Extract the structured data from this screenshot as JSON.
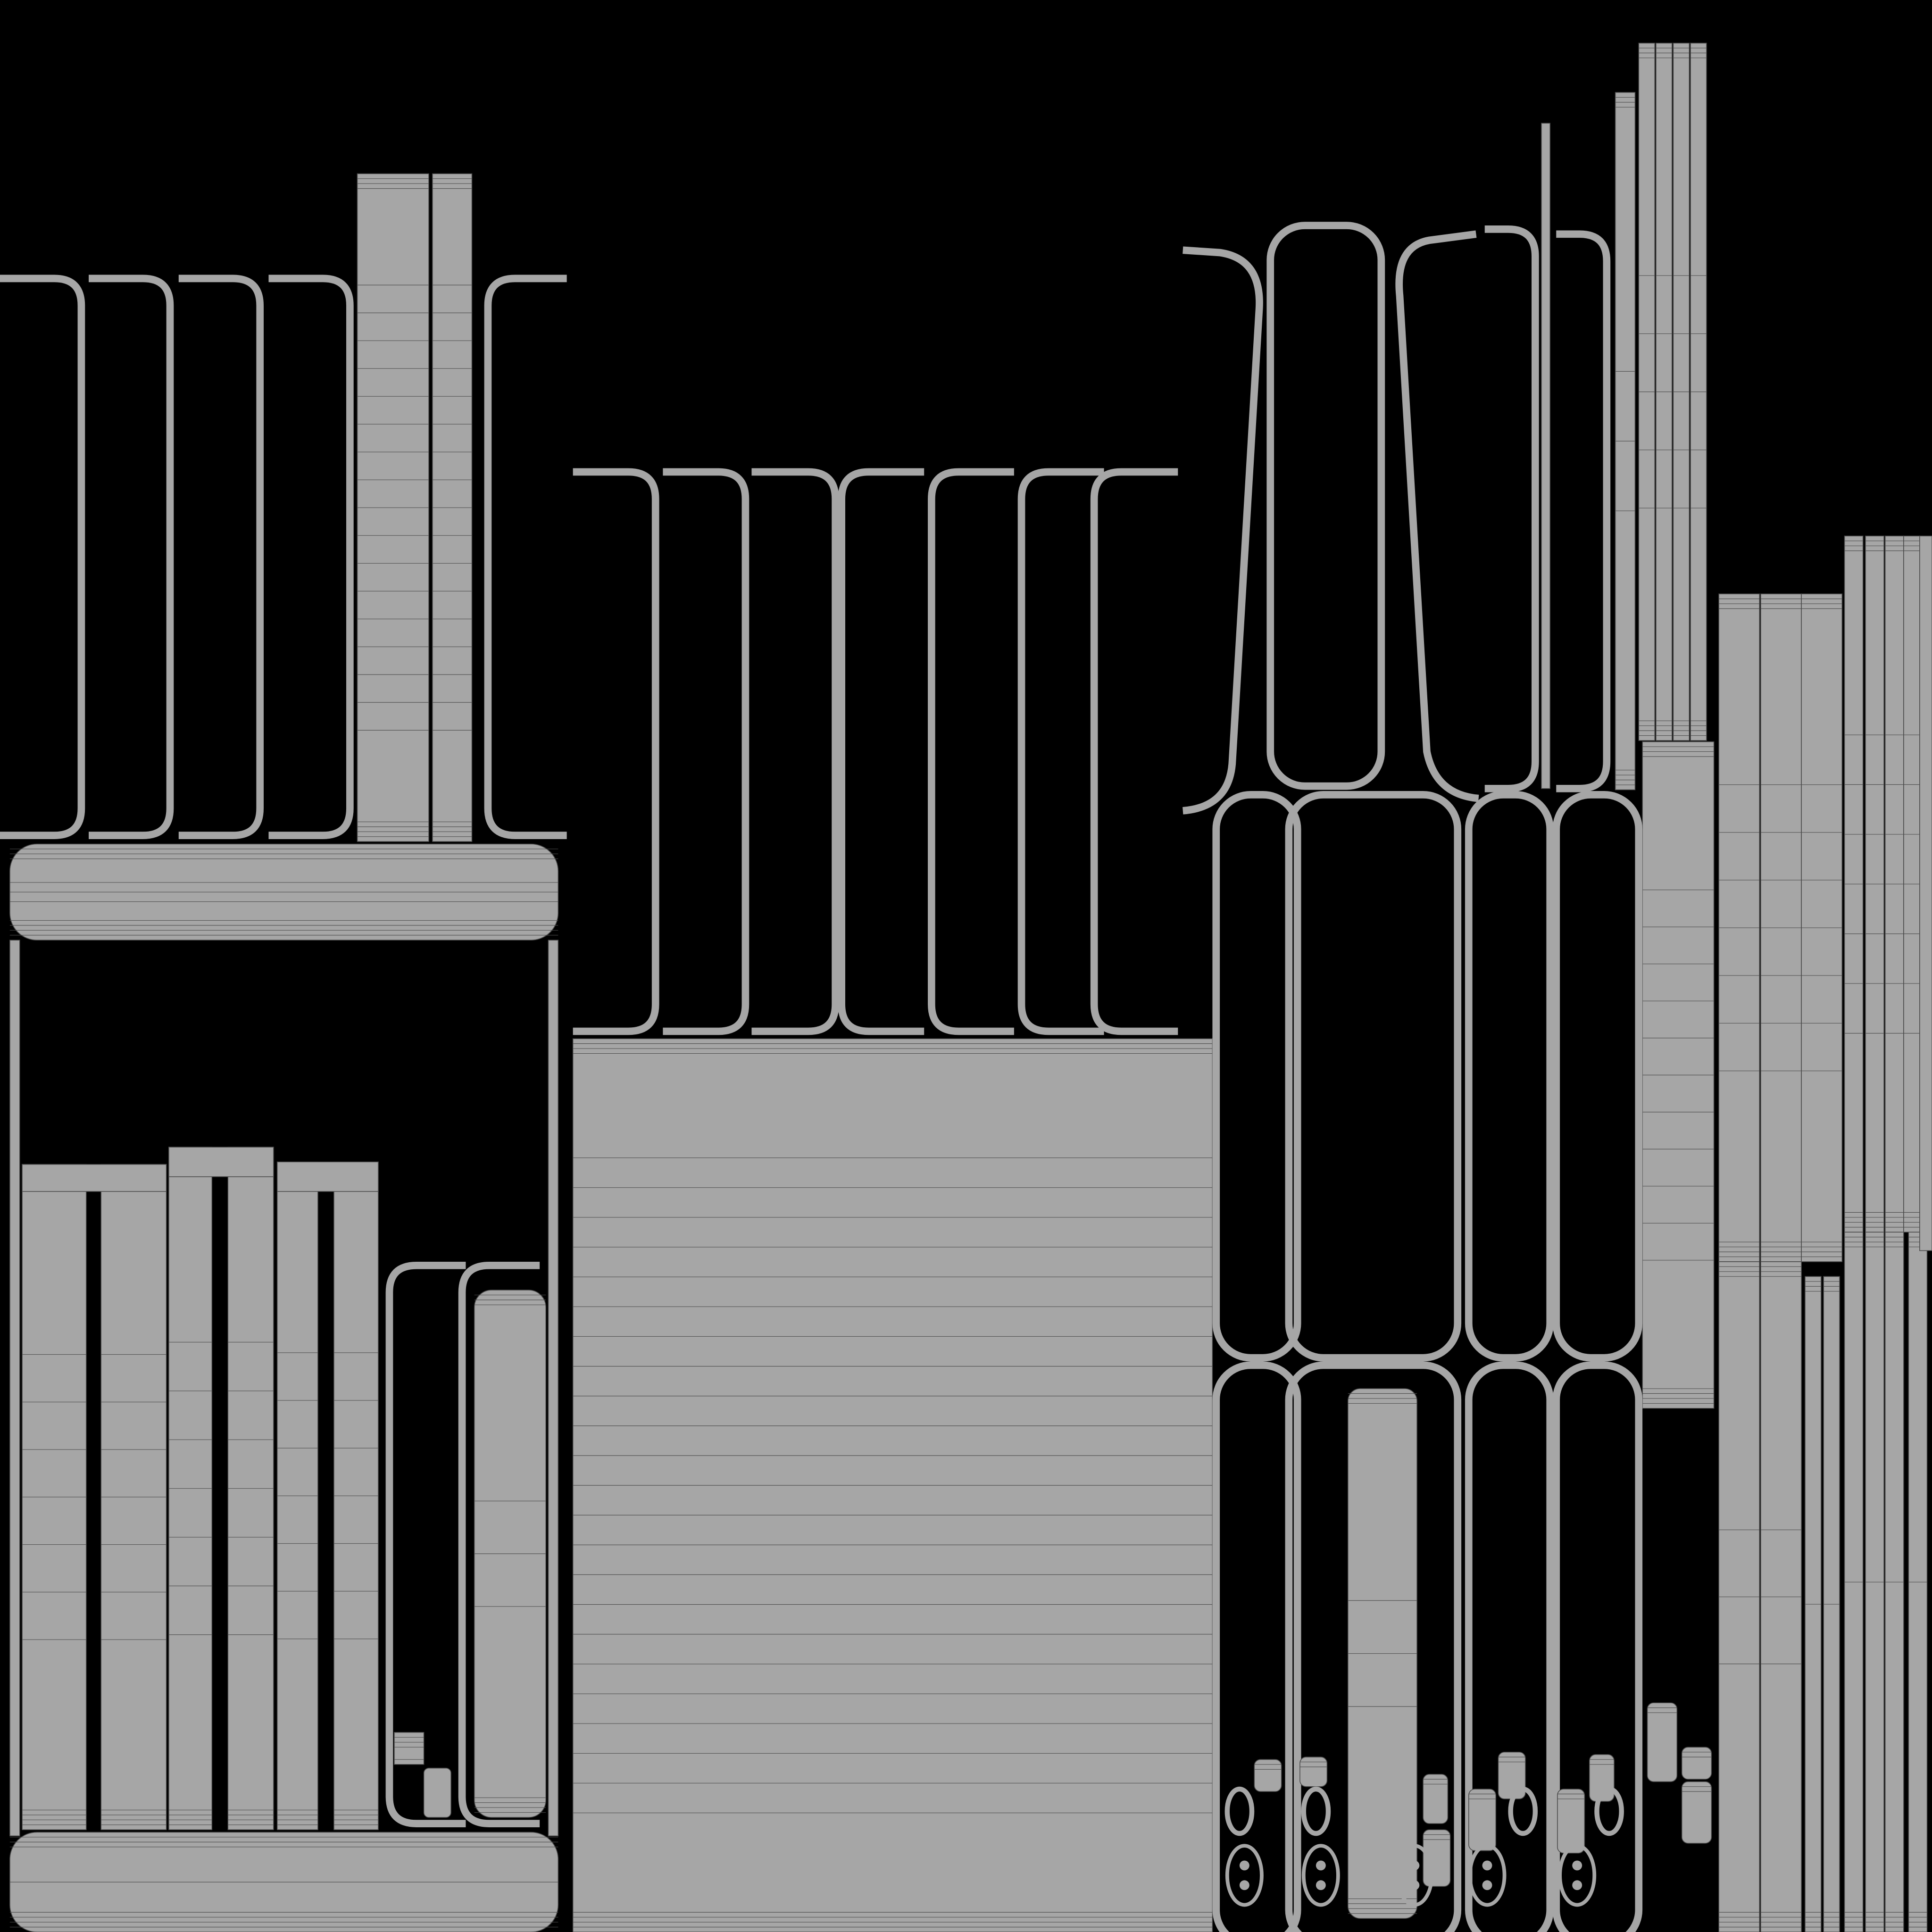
{
  "colors": {
    "background": "#000000",
    "island_fill": "#a6a6a6",
    "wire": "#4a4a4a"
  }
}
